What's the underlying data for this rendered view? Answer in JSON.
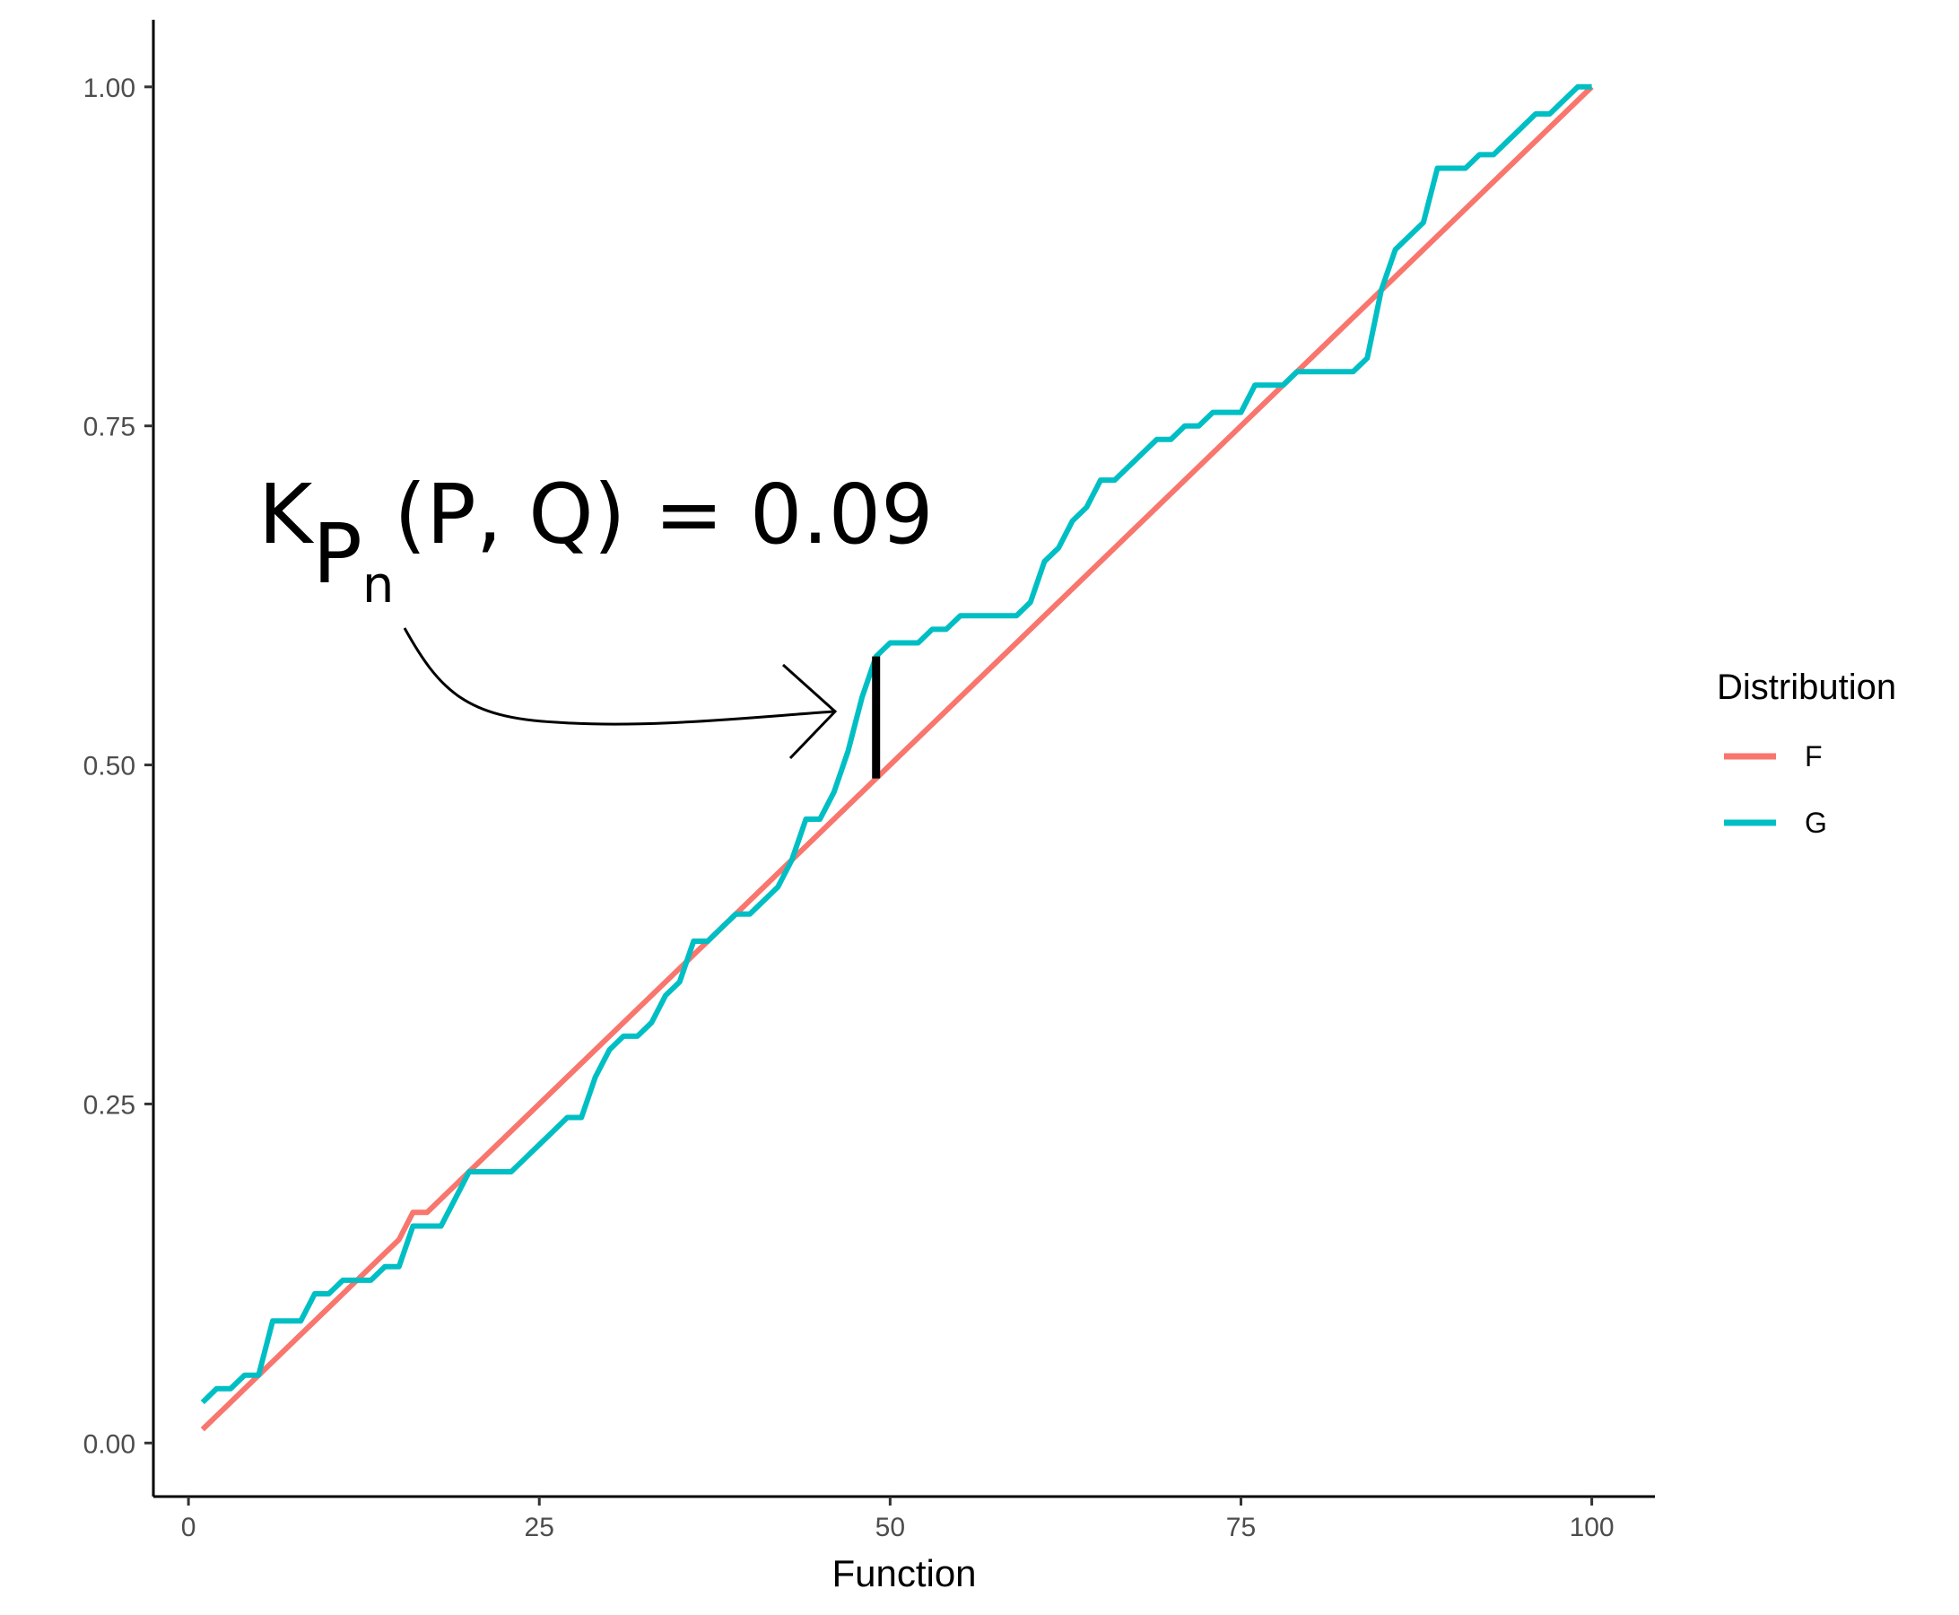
{
  "chart_data": {
    "type": "line",
    "title": "",
    "xlabel": "Function",
    "ylabel": "",
    "xlim": [
      -2.5,
      104.5
    ],
    "ylim": [
      -0.0395,
      1.0495
    ],
    "x_ticks": [
      0,
      25,
      50,
      75,
      100
    ],
    "x_tick_labels": [
      "0",
      "25",
      "50",
      "75",
      "100"
    ],
    "y_ticks": [
      0,
      0.25,
      0.5,
      0.75,
      1.0
    ],
    "y_tick_labels": [
      "0.00",
      "0.25",
      "0.50",
      "0.75",
      "1.00"
    ],
    "grid": false,
    "legend": {
      "title": "Distribution",
      "position": "right"
    },
    "series": [
      {
        "name": "F",
        "color": "#F8766D",
        "x": [
          1,
          15,
          16,
          17,
          100
        ],
        "y": [
          0.01,
          0.15,
          0.17,
          0.17,
          1.0
        ]
      },
      {
        "name": "G",
        "color": "#00BFC4",
        "x": [
          1,
          2,
          3,
          4,
          5,
          6,
          7,
          8,
          9,
          10,
          11,
          12,
          13,
          14,
          15,
          16,
          17,
          18,
          19,
          20,
          21,
          22,
          23,
          24,
          25,
          26,
          27,
          28,
          29,
          30,
          31,
          32,
          33,
          34,
          35,
          36,
          37,
          38,
          39,
          40,
          41,
          42,
          43,
          44,
          45,
          46,
          47,
          48,
          49,
          50,
          51,
          52,
          53,
          54,
          55,
          56,
          57,
          58,
          59,
          60,
          61,
          62,
          63,
          64,
          65,
          66,
          67,
          68,
          69,
          70,
          71,
          72,
          73,
          74,
          75,
          76,
          77,
          78,
          79,
          80,
          81,
          82,
          83,
          84,
          85,
          86,
          87,
          88,
          89,
          90,
          91,
          92,
          93,
          94,
          95,
          96,
          97,
          98,
          99,
          100
        ],
        "y": [
          0.03,
          0.04,
          0.04,
          0.05,
          0.05,
          0.09,
          0.09,
          0.09,
          0.11,
          0.11,
          0.12,
          0.12,
          0.12,
          0.13,
          0.13,
          0.16,
          0.16,
          0.16,
          0.18,
          0.2,
          0.2,
          0.2,
          0.2,
          0.21,
          0.22,
          0.23,
          0.24,
          0.24,
          0.27,
          0.29,
          0.3,
          0.3,
          0.31,
          0.33,
          0.34,
          0.37,
          0.37,
          0.38,
          0.39,
          0.39,
          0.4,
          0.41,
          0.43,
          0.46,
          0.46,
          0.48,
          0.51,
          0.55,
          0.58,
          0.59,
          0.59,
          0.59,
          0.6,
          0.6,
          0.61,
          0.61,
          0.61,
          0.61,
          0.61,
          0.62,
          0.65,
          0.66,
          0.68,
          0.69,
          0.71,
          0.71,
          0.72,
          0.73,
          0.74,
          0.74,
          0.75,
          0.75,
          0.76,
          0.76,
          0.76,
          0.78,
          0.78,
          0.78,
          0.79,
          0.79,
          0.79,
          0.79,
          0.79,
          0.8,
          0.85,
          0.88,
          0.89,
          0.9,
          0.94,
          0.94,
          0.94,
          0.95,
          0.95,
          0.96,
          0.97,
          0.98,
          0.98,
          0.99,
          1.0,
          1.0
        ]
      }
    ],
    "annotations": [
      {
        "kind": "text",
        "parts": {
          "main": "K",
          "sub1": "P",
          "sub2": "n",
          "rest": "(P, Q)",
          "value": "= 0.09"
        }
      },
      {
        "kind": "segment",
        "x": 49,
        "y_from": 0.49,
        "y_to": 0.58,
        "color": "#000000"
      }
    ]
  }
}
